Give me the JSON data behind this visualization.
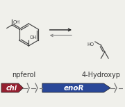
{
  "bg_color": "#f0f0eb",
  "mol_color": "#444444",
  "arrow_fwd_color": "#222222",
  "arrow_rev_color": "#888888",
  "label_left": "npferol",
  "label_right": "4-Hydroxyp",
  "label_fontsize": 7.0,
  "gene_chi_color": "#952030",
  "gene_enor_color": "#2a4898",
  "gene_chi_label": "chi",
  "gene_enor_label": "enoR",
  "gene_label_color": "#ffffff",
  "gene_label_fontsize": 7.0,
  "break_color": "#777777"
}
